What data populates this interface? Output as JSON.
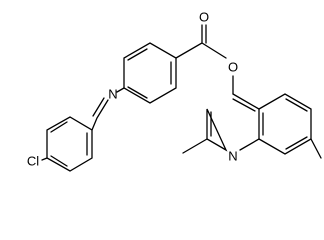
{
  "atoms": {
    "labels": [
      "O",
      "O",
      "N",
      "N",
      "Cl"
    ]
  }
}
